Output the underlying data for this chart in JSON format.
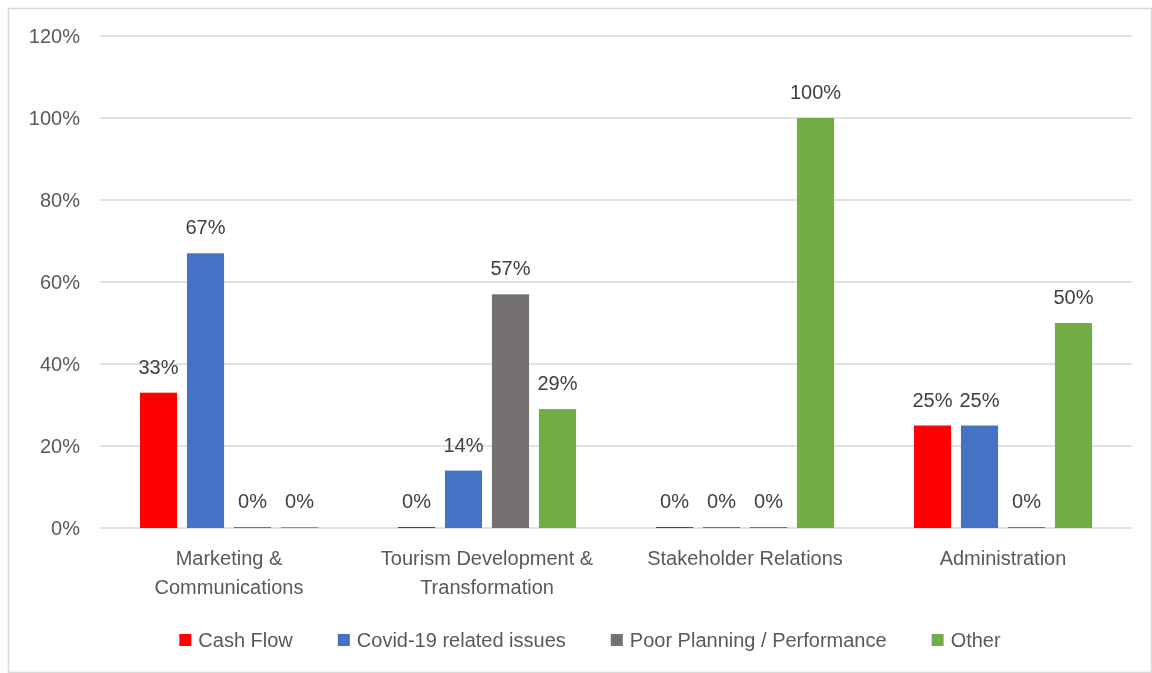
{
  "chart_data": {
    "type": "bar",
    "categories": [
      "Marketing & Communications",
      "Tourism Development & Transformation",
      "Stakeholder Relations",
      "Administration"
    ],
    "series": [
      {
        "name": "Cash Flow",
        "color": "#ff0000",
        "values": [
          33,
          0,
          0,
          25
        ],
        "value_labels": [
          "33%",
          "0%",
          "0%",
          "25%"
        ]
      },
      {
        "name": "Covid-19 related issues",
        "color": "#4472c4",
        "values": [
          67,
          14,
          0,
          25
        ],
        "value_labels": [
          "67%",
          "14%",
          "0%",
          "25%"
        ]
      },
      {
        "name": "Poor Planning / Performance",
        "color": "#767171",
        "values": [
          0,
          57,
          0,
          0
        ],
        "value_labels": [
          "0%",
          "57%",
          "0%",
          "0%"
        ]
      },
      {
        "name": "Other",
        "color": "#70ad47",
        "values": [
          0,
          29,
          100,
          50
        ],
        "value_labels": [
          "0%",
          "29%",
          "100%",
          "50%"
        ]
      }
    ],
    "ylim": [
      0,
      120
    ],
    "yticks": [
      {
        "value": 0,
        "label": "0%"
      },
      {
        "value": 20,
        "label": "20%"
      },
      {
        "value": 40,
        "label": "40%"
      },
      {
        "value": 60,
        "label": "60%"
      },
      {
        "value": 80,
        "label": "80%"
      },
      {
        "value": 100,
        "label": "100%"
      },
      {
        "value": 120,
        "label": "120%"
      }
    ],
    "grid": "y",
    "legend": "bottom"
  }
}
